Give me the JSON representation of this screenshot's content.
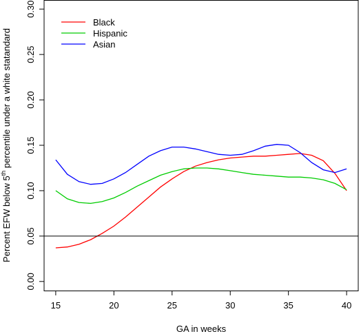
{
  "chart_data": {
    "type": "line",
    "title": "",
    "xlabel": "GA in weeks",
    "ylabel_parts": [
      "Percent EFW below 5",
      "th",
      " percentile under a white statandard"
    ],
    "xlim": [
      14,
      41
    ],
    "ylim": [
      -0.01,
      0.31
    ],
    "xticks": [
      15,
      20,
      25,
      30,
      35,
      40
    ],
    "yticks": [
      0.0,
      0.05,
      0.1,
      0.15,
      0.2,
      0.25,
      0.3
    ],
    "ytick_labels": [
      "0.00",
      "0.05",
      "0.10",
      "0.15",
      "0.20",
      "0.25",
      "0.30"
    ],
    "legend_position": "top-left",
    "reference_line": {
      "y": 0.05,
      "color": "#000000"
    },
    "x": [
      15,
      16,
      17,
      18,
      19,
      20,
      21,
      22,
      23,
      24,
      25,
      26,
      27,
      28,
      29,
      30,
      31,
      32,
      33,
      34,
      35,
      36,
      37,
      38,
      39,
      40
    ],
    "series": [
      {
        "name": "Black",
        "color": "#ff0000",
        "values": [
          0.037,
          0.038,
          0.041,
          0.046,
          0.053,
          0.061,
          0.071,
          0.082,
          0.093,
          0.104,
          0.113,
          0.121,
          0.127,
          0.131,
          0.134,
          0.136,
          0.137,
          0.138,
          0.138,
          0.139,
          0.14,
          0.141,
          0.139,
          0.133,
          0.119,
          0.1
        ]
      },
      {
        "name": "Hispanic",
        "color": "#00cc00",
        "values": [
          0.1,
          0.091,
          0.087,
          0.086,
          0.088,
          0.092,
          0.098,
          0.105,
          0.111,
          0.117,
          0.121,
          0.124,
          0.125,
          0.125,
          0.124,
          0.122,
          0.12,
          0.118,
          0.117,
          0.116,
          0.115,
          0.115,
          0.114,
          0.112,
          0.108,
          0.101
        ]
      },
      {
        "name": "Asian",
        "color": "#0000ff",
        "values": [
          0.134,
          0.118,
          0.11,
          0.107,
          0.108,
          0.113,
          0.12,
          0.129,
          0.138,
          0.144,
          0.148,
          0.148,
          0.146,
          0.143,
          0.14,
          0.139,
          0.14,
          0.144,
          0.149,
          0.151,
          0.15,
          0.142,
          0.131,
          0.123,
          0.12,
          0.124
        ]
      }
    ]
  }
}
